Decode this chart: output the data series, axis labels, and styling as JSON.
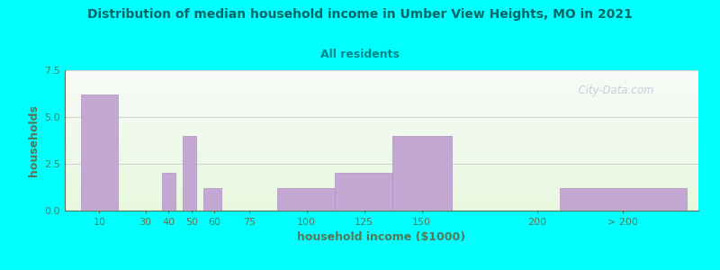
{
  "title": "Distribution of median household income in Umber View Heights, MO in 2021",
  "subtitle": "All residents",
  "xlabel": "household income ($1000)",
  "ylabel": "households",
  "background_color": "#00FFFF",
  "bar_color": "#c4a8d4",
  "bar_edge_color": "#b090c0",
  "title_color": "#006666",
  "subtitle_color": "#008888",
  "axis_label_color": "#557755",
  "tick_color": "#557755",
  "grid_color": "#cccccc",
  "ylim": [
    0,
    7.5
  ],
  "yticks": [
    0,
    2.5,
    5,
    7.5
  ],
  "bar_lefts": [
    2,
    37,
    46,
    55,
    87,
    112,
    137,
    210
  ],
  "bar_rights": [
    18,
    43,
    52,
    63,
    113,
    138,
    163,
    265
  ],
  "bar_heights": [
    6.2,
    2.0,
    4.0,
    1.2,
    1.2,
    2.0,
    4.0,
    1.2
  ],
  "xtick_labels": [
    "10",
    "30",
    "40",
    "50",
    "60",
    "75",
    "100",
    "125",
    "150",
    "200",
    "> 200"
  ],
  "xtick_positions": [
    10,
    30,
    40,
    50,
    60,
    75,
    100,
    125,
    150,
    200,
    237
  ],
  "watermark": "  City-Data.com"
}
